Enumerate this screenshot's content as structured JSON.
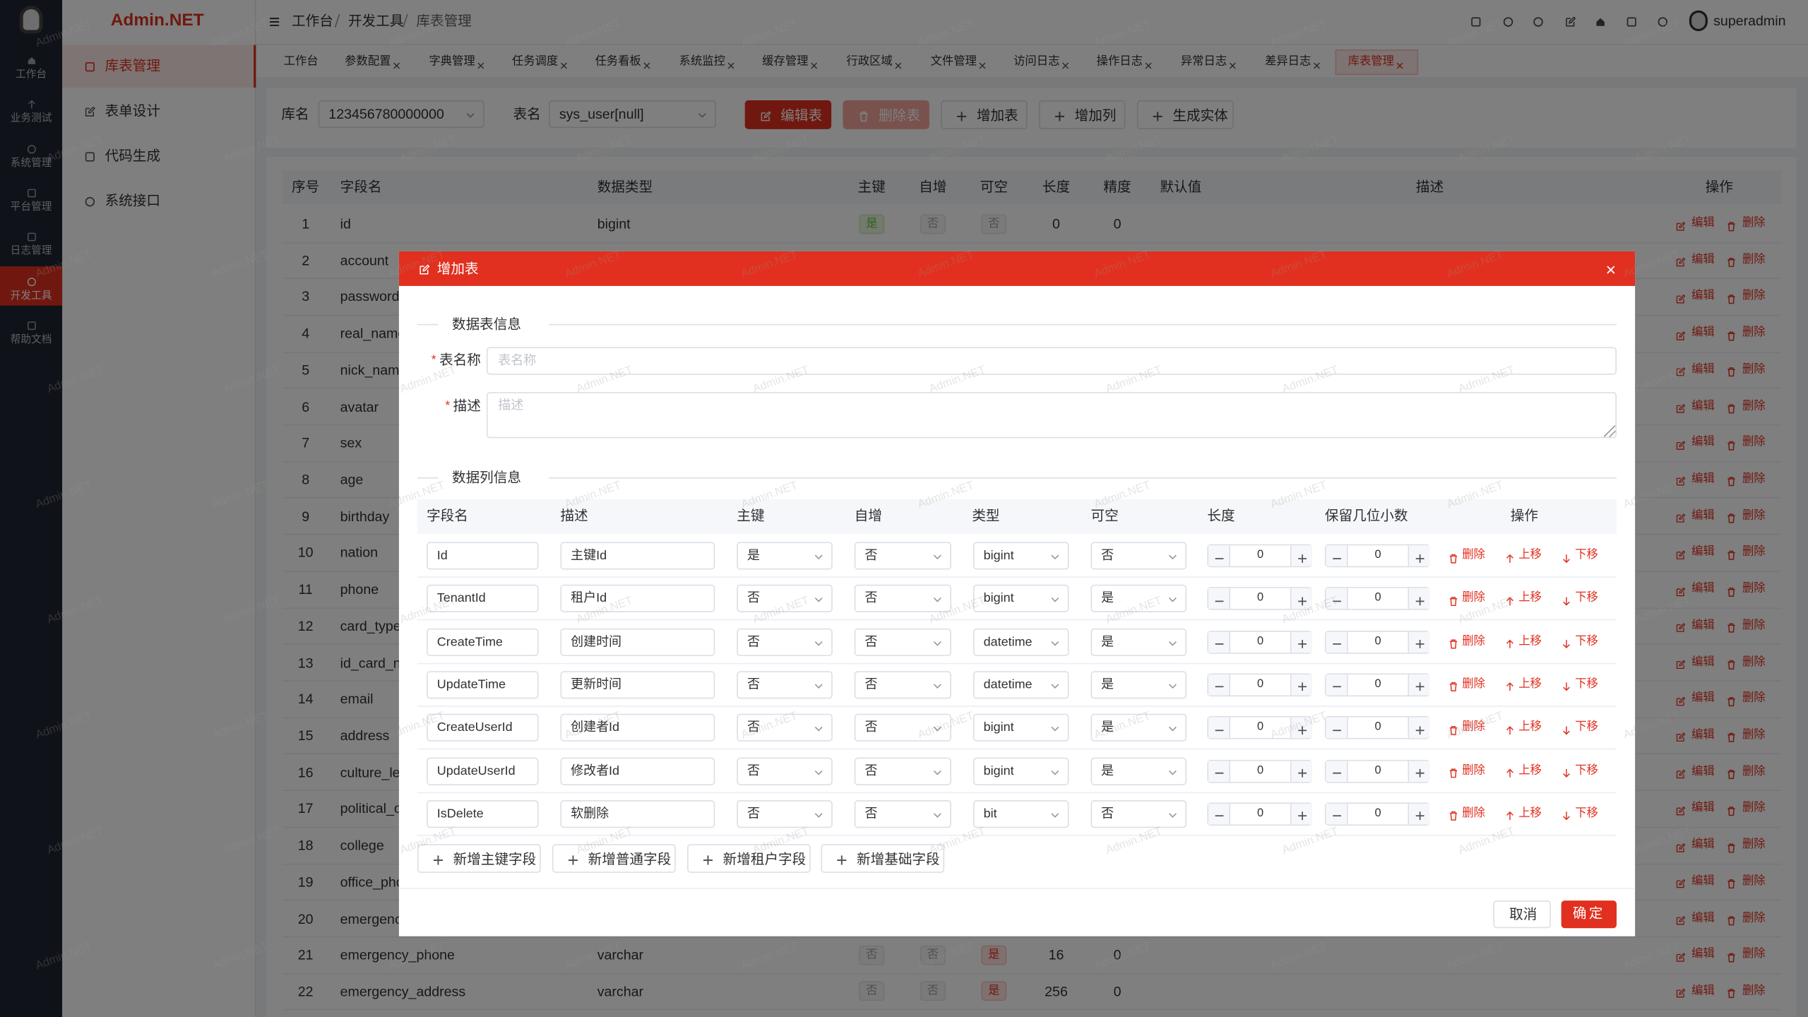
{
  "app_title": "Admin.NET",
  "sidebar": {
    "menu": [
      "工作台",
      "业务测试",
      "系统管理",
      "平台管理",
      "日志管理",
      "开发工具",
      "帮助文档"
    ]
  },
  "submenu": [
    "库表管理",
    "表单设计",
    "代码生成",
    "系统接口"
  ],
  "breadcrumb": [
    "工作台",
    "开发工具",
    "库表管理"
  ],
  "user": "superadmin",
  "tabs": [
    "工作台",
    "参数配置",
    "字典管理",
    "任务调度",
    "任务看板",
    "系统监控",
    "缓存管理",
    "行政区域",
    "文件管理",
    "访问日志",
    "操作日志",
    "异常日志",
    "差异日志",
    "库表管理"
  ],
  "toolbar": {
    "db_label": "库名",
    "db_value": "123456780000000",
    "table_label": "表名",
    "table_value": "sys_user[null]",
    "buttons": [
      "编辑表",
      "删除表",
      "增加表",
      "增加列",
      "生成实体"
    ]
  },
  "table": {
    "columns": [
      "序号",
      "字段名",
      "数据类型",
      "主键",
      "自增",
      "可空",
      "长度",
      "精度",
      "默认值",
      "描述",
      "操作"
    ],
    "actions": [
      "编辑",
      "删除"
    ],
    "rows": [
      [
        1,
        "id",
        "bigint",
        "是",
        "否",
        "否",
        0,
        0
      ],
      [
        2,
        "account"
      ],
      [
        3,
        "password"
      ],
      [
        4,
        "real_name"
      ],
      [
        5,
        "nick_name"
      ],
      [
        6,
        "avatar"
      ],
      [
        7,
        "sex"
      ],
      [
        8,
        "age"
      ],
      [
        9,
        "birthday"
      ],
      [
        10,
        "nation"
      ],
      [
        11,
        "phone"
      ],
      [
        12,
        "card_type"
      ],
      [
        13,
        "id_card_nu"
      ],
      [
        14,
        "email"
      ],
      [
        15,
        "address"
      ],
      [
        16,
        "culture_lev"
      ],
      [
        17,
        "political_ou"
      ],
      [
        18,
        "college"
      ],
      [
        19,
        "office_phon"
      ],
      [
        20,
        "emergency"
      ],
      [
        21,
        "emergency_phone",
        "varchar",
        "否",
        "否",
        "是",
        16,
        0
      ],
      [
        22,
        "emergency_address",
        "varchar",
        "否",
        "否",
        "是",
        256,
        0
      ]
    ]
  },
  "modal": {
    "title": "增加表",
    "section_table": "数据表信息",
    "required_mark": "*",
    "name_label": "表名称",
    "name_placeholder": "表名称",
    "desc_label": "描述",
    "desc_placeholder": "描述",
    "section_columns": "数据列信息",
    "columns": [
      "字段名",
      "描述",
      "主键",
      "自增",
      "类型",
      "可空",
      "长度",
      "保留几位小数",
      "操作"
    ],
    "rows": [
      [
        "Id",
        "主键Id",
        "是",
        "否",
        "bigint",
        "否",
        0,
        0
      ],
      [
        "TenantId",
        "租户Id",
        "否",
        "否",
        "bigint",
        "是",
        0,
        0
      ],
      [
        "CreateTime",
        "创建时间",
        "否",
        "否",
        "datetime",
        "是",
        0,
        0
      ],
      [
        "UpdateTime",
        "更新时间",
        "否",
        "否",
        "datetime",
        "是",
        0,
        0
      ],
      [
        "CreateUserId",
        "创建者Id",
        "否",
        "否",
        "bigint",
        "是",
        0,
        0
      ],
      [
        "UpdateUserId",
        "修改者Id",
        "否",
        "否",
        "bigint",
        "是",
        0,
        0
      ],
      [
        "IsDelete",
        "软删除",
        "否",
        "否",
        "bit",
        "否",
        0,
        0
      ]
    ],
    "row_actions": [
      "删除",
      "上移",
      "下移"
    ],
    "add_buttons": [
      "新增主键字段",
      "新增普通字段",
      "新增租户字段",
      "新增基础字段"
    ],
    "cancel": "取消",
    "confirm": "确定"
  },
  "watermark": "Admin.NET"
}
